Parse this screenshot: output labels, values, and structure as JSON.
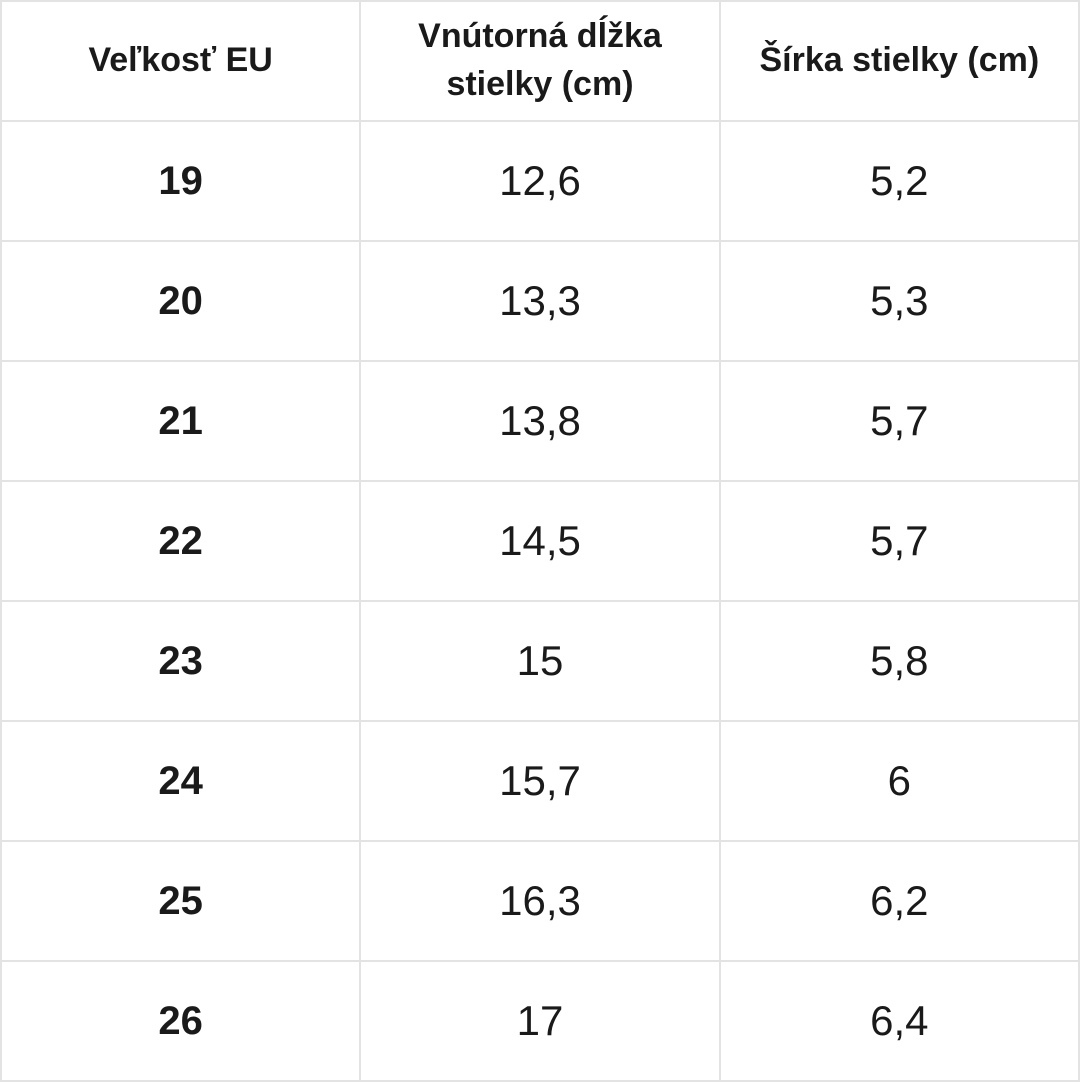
{
  "chart_data": {
    "type": "table",
    "columns": [
      "Veľkosť EU",
      "Vnútorná dĺžka stielky (cm)",
      "Šírka stielky (cm)"
    ],
    "column_names": [
      "size-eu",
      "inner-insole-length",
      "insole-width"
    ],
    "rows": [
      [
        "19",
        "12,6",
        "5,2"
      ],
      [
        "20",
        "13,3",
        "5,3"
      ],
      [
        "21",
        "13,8",
        "5,7"
      ],
      [
        "22",
        "14,5",
        "5,7"
      ],
      [
        "23",
        "15",
        "5,8"
      ],
      [
        "24",
        "15,7",
        "6"
      ],
      [
        "25",
        "16,3",
        "6,2"
      ],
      [
        "26",
        "17",
        "6,4"
      ]
    ]
  },
  "colors": {
    "text": "#1a1a1a",
    "border": "#e3e3e3",
    "background": "#ffffff"
  }
}
